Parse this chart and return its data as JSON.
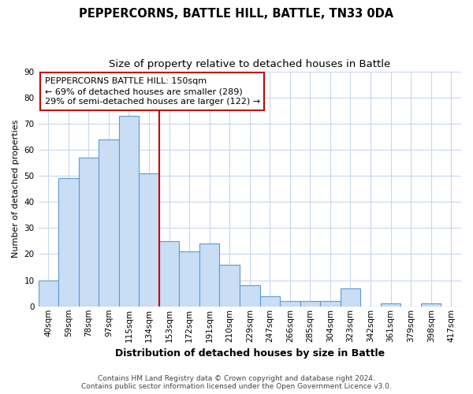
{
  "title": "PEPPERCORNS, BATTLE HILL, BATTLE, TN33 0DA",
  "subtitle": "Size of property relative to detached houses in Battle",
  "xlabel": "Distribution of detached houses by size in Battle",
  "ylabel": "Number of detached properties",
  "footer_line1": "Contains HM Land Registry data © Crown copyright and database right 2024.",
  "footer_line2": "Contains public sector information licensed under the Open Government Licence v3.0.",
  "bin_labels": [
    "40sqm",
    "59sqm",
    "78sqm",
    "97sqm",
    "115sqm",
    "134sqm",
    "153sqm",
    "172sqm",
    "191sqm",
    "210sqm",
    "229sqm",
    "247sqm",
    "266sqm",
    "285sqm",
    "304sqm",
    "323sqm",
    "342sqm",
    "361sqm",
    "379sqm",
    "398sqm",
    "417sqm"
  ],
  "bar_values": [
    10,
    49,
    57,
    64,
    73,
    51,
    25,
    21,
    24,
    16,
    8,
    4,
    2,
    2,
    2,
    7,
    0,
    1,
    0,
    1,
    0
  ],
  "bar_color": "#c9ddf5",
  "bar_edge_color": "#5b9bd5",
  "marker_line_index": 6,
  "marker_color": "#cc0000",
  "annotation_text": "PEPPERCORNS BATTLE HILL: 150sqm\n← 69% of detached houses are smaller (289)\n29% of semi-detached houses are larger (122) →",
  "annotation_box_color": "#ffffff",
  "annotation_box_edge": "#cc0000",
  "ylim": [
    0,
    90
  ],
  "yticks": [
    0,
    10,
    20,
    30,
    40,
    50,
    60,
    70,
    80,
    90
  ],
  "background_color": "#ffffff",
  "grid_color": "#c8d8ee",
  "title_fontsize": 10.5,
  "subtitle_fontsize": 9.5,
  "ylabel_fontsize": 8,
  "xlabel_fontsize": 9,
  "tick_fontsize": 7.5,
  "footer_fontsize": 6.5,
  "annotation_fontsize": 8
}
